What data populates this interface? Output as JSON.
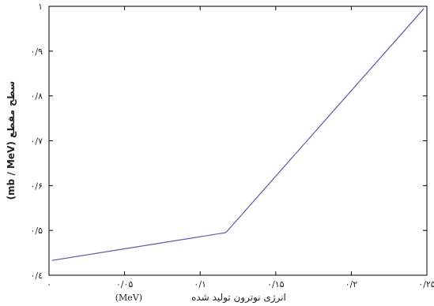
{
  "chart_data": {
    "type": "line",
    "xlabel": "انرژی نوترون تولید شده",
    "xlabel_unit": "(MeV)",
    "ylabel": "سطح مقطع (mb / MeV)",
    "xlim": [
      0,
      0.25
    ],
    "ylim": [
      0.4,
      1.0
    ],
    "x_ticks": [
      "۰",
      "۰/۰۵",
      "۰/۱",
      "۰/۱۵",
      "۰/۲",
      "۰/۲۵"
    ],
    "y_ticks": [
      "۰/٤",
      "۰/۵",
      "۰/۶",
      "۰/۷",
      "۰/۸",
      "۰/۹",
      "۱"
    ],
    "grid": false,
    "series": [
      {
        "x": [
          0.002,
          0.117,
          0.248
        ],
        "y": [
          0.433,
          0.495,
          0.995
        ],
        "color": "#5a5aa6"
      }
    ]
  }
}
